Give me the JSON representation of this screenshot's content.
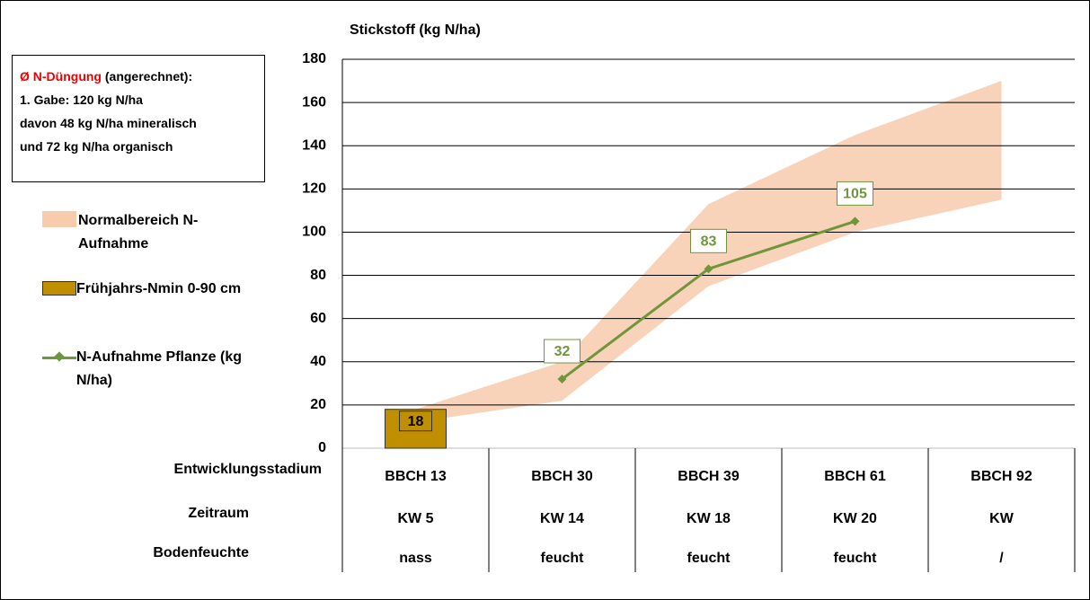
{
  "chart_data": {
    "type": "combo",
    "title": "Stickstoff (kg N/ha)",
    "info": {
      "highlight": "Ø N-Düngung",
      "text": "(angerechnet):",
      "lines": [
        "1. Gabe: 120 kg N/ha",
        "davon 48 kg N/ha mineralisch",
        "und 72 kg N/ha organisch"
      ]
    },
    "category_label": "Entwicklungsstadium",
    "categories": [
      "BBCH 13",
      "BBCH 30",
      "BBCH 39",
      "BBCH 61",
      "BBCH 92"
    ],
    "rows": [
      {
        "label": "Zeitraum",
        "cells": [
          "KW 5",
          "KW 14",
          "KW 18",
          "KW 20",
          "KW"
        ]
      },
      {
        "label": "Bodenfeuchte",
        "cells": [
          "nass",
          "feucht",
          "feucht",
          "feucht",
          "/"
        ]
      }
    ],
    "series": [
      {
        "name": "Normalbereich N-Aufnahme",
        "type": "range",
        "color": "#f8cbad",
        "lower": [
          12,
          22,
          75,
          100,
          115
        ],
        "upper": [
          18,
          40,
          113,
          145,
          170
        ]
      },
      {
        "name": "Frühjahrs-Nmin 0-90 cm",
        "type": "bar",
        "color": "#bf8f00",
        "values": [
          18,
          null,
          null,
          null,
          null
        ]
      },
      {
        "name": "N-Aufnahme Pflanze (kg N/ha)",
        "type": "line",
        "color": "#70963c",
        "values": [
          null,
          32,
          83,
          105,
          null
        ]
      }
    ],
    "ylim": [
      0,
      180
    ],
    "yticks": [
      0,
      20,
      40,
      60,
      80,
      100,
      120,
      140,
      160,
      180
    ],
    "grid": true
  }
}
